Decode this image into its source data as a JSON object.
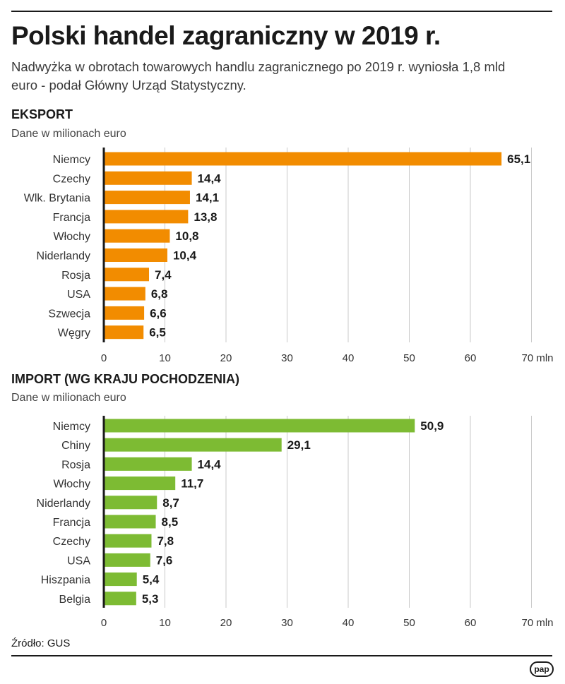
{
  "title": "Polski handel zagraniczny w 2019 r.",
  "subtitle": "Nadwyżka w obrotach towarowych handlu zagranicznego po 2019 r. wyniosła 1,8 mld euro - podał Główny Urząd Statystyczny.",
  "source": "Źródło: GUS",
  "logo": "pap",
  "chart_data": [
    {
      "id": "export",
      "type": "bar",
      "orientation": "horizontal",
      "title": "EKSPORT",
      "units_label": "Dane w milionach euro",
      "categories": [
        "Niemcy",
        "Czechy",
        "Wlk. Brytania",
        "Francja",
        "Włochy",
        "Niderlandy",
        "Rosja",
        "USA",
        "Szwecja",
        "Węgry"
      ],
      "values": [
        65.1,
        14.4,
        14.1,
        13.8,
        10.8,
        10.4,
        7.4,
        6.8,
        6.6,
        6.5
      ],
      "value_labels": [
        "65,1",
        "14,4",
        "14,1",
        "13,8",
        "10,8",
        "10,4",
        "7,4",
        "6,8",
        "6,6",
        "6,5"
      ],
      "ticks": [
        "0",
        "10",
        "20",
        "30",
        "40",
        "50",
        "60",
        "70 mln"
      ],
      "xlim": [
        0,
        70
      ],
      "grid": true,
      "color": "#f28c00"
    },
    {
      "id": "import",
      "type": "bar",
      "orientation": "horizontal",
      "title": "IMPORT (WG KRAJU POCHODZENIA)",
      "units_label": "Dane w milionach euro",
      "categories": [
        "Niemcy",
        "Chiny",
        "Rosja",
        "Włochy",
        "Niderlandy",
        "Francja",
        "Czechy",
        "USA",
        "Hiszpania",
        "Belgia"
      ],
      "values": [
        50.9,
        29.1,
        14.4,
        11.7,
        8.7,
        8.5,
        7.8,
        7.6,
        5.4,
        5.3
      ],
      "value_labels": [
        "50,9",
        "29,1",
        "14,4",
        "11,7",
        "8,7",
        "8,5",
        "7,8",
        "7,6",
        "5,4",
        "5,3"
      ],
      "ticks": [
        "0",
        "10",
        "20",
        "30",
        "40",
        "50",
        "60",
        "70 mln"
      ],
      "xlim": [
        0,
        70
      ],
      "grid": true,
      "color": "#7dbb33"
    }
  ]
}
